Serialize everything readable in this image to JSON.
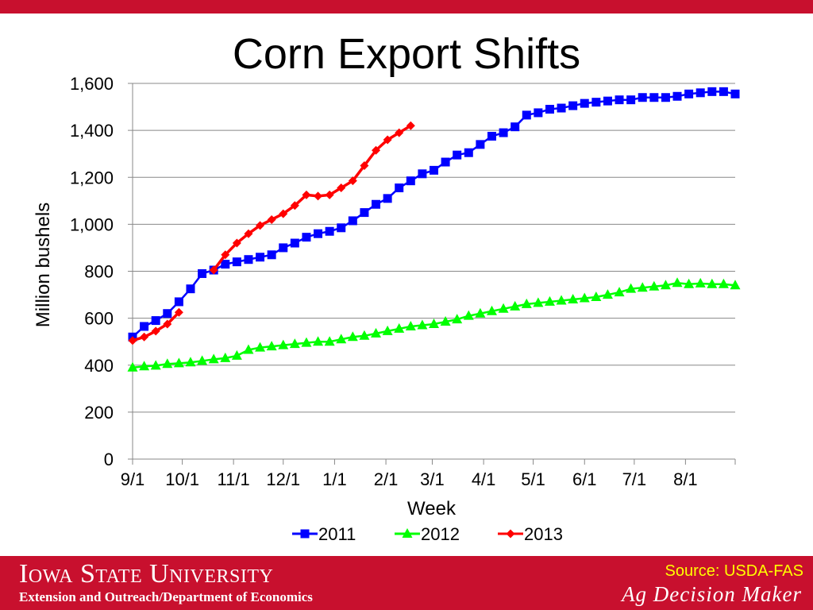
{
  "colors": {
    "brand_red": "#c8102e",
    "source_text": "#ffff00",
    "series_2011": "#0000ff",
    "series_2012": "#00ff00",
    "series_2013": "#ff0000",
    "gridline": "#888888"
  },
  "title": "Corn Export Shifts",
  "footer": {
    "university": "Iowa State University",
    "department": "Extension and Outreach/Department of Economics",
    "source": "Source: USDA-FAS",
    "brand": "Ag Decision Maker"
  },
  "chart_data": {
    "type": "line",
    "xlabel": "Week",
    "ylabel": "Million bushels",
    "ylim": [
      0,
      1600
    ],
    "yticks": [
      "0",
      "200",
      "400",
      "600",
      "800",
      "1,000",
      "1,200",
      "1,400",
      "1,600"
    ],
    "xlim": [
      0,
      52
    ],
    "xticks": [
      {
        "label": "9/1",
        "x": 0
      },
      {
        "label": "10/1",
        "x": 4.29
      },
      {
        "label": "11/1",
        "x": 8.71
      },
      {
        "label": "12/1",
        "x": 13
      },
      {
        "label": "1/1",
        "x": 17.43
      },
      {
        "label": "2/1",
        "x": 21.86
      },
      {
        "label": "3/1",
        "x": 25.86
      },
      {
        "label": "4/1",
        "x": 30.29
      },
      {
        "label": "5/1",
        "x": 34.57
      },
      {
        "label": "6/1",
        "x": 39
      },
      {
        "label": "7/1",
        "x": 43.29
      },
      {
        "label": "8/1",
        "x": 47.71
      }
    ],
    "grid": "horizontal",
    "legend": "bottom",
    "series": [
      {
        "name": "2011",
        "marker": "square",
        "values": [
          520,
          565,
          590,
          620,
          670,
          725,
          790,
          805,
          830,
          840,
          850,
          860,
          870,
          900,
          920,
          945,
          960,
          970,
          985,
          1015,
          1050,
          1085,
          1110,
          1155,
          1185,
          1215,
          1230,
          1265,
          1295,
          1305,
          1340,
          1375,
          1390,
          1415,
          1465,
          1475,
          1490,
          1495,
          1505,
          1515,
          1520,
          1525,
          1530,
          1530,
          1540,
          1540,
          1540,
          1545,
          1555,
          1560,
          1565,
          1565,
          1555
        ]
      },
      {
        "name": "2012",
        "marker": "triangle",
        "values": [
          390,
          395,
          398,
          405,
          408,
          412,
          418,
          425,
          430,
          440,
          465,
          475,
          480,
          485,
          490,
          495,
          500,
          500,
          510,
          520,
          525,
          535,
          545,
          555,
          565,
          570,
          575,
          585,
          595,
          610,
          620,
          630,
          640,
          650,
          660,
          665,
          670,
          675,
          680,
          685,
          690,
          700,
          710,
          725,
          730,
          735,
          740,
          750,
          745,
          748,
          745,
          745,
          740
        ]
      },
      {
        "name": "2013",
        "marker": "diamond",
        "values": [
          505,
          520,
          545,
          575,
          625,
          null,
          null,
          805,
          870,
          920,
          960,
          995,
          1020,
          1045,
          1080,
          1125,
          1120,
          1125,
          1155,
          1185,
          1250,
          1315,
          1360,
          1390,
          1420
        ]
      }
    ]
  }
}
